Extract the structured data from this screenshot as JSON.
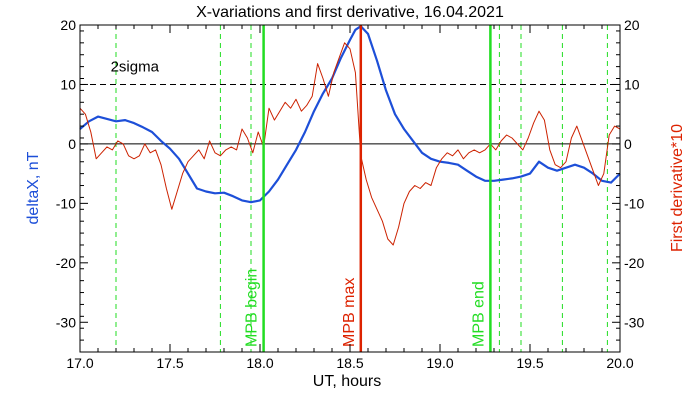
{
  "chart_data": {
    "type": "line",
    "title": "X-variations and first derivative, 16.04.2021",
    "xlabel": "UT, hours",
    "ylabel_left": "deltaX, nT",
    "ylabel_right": "First derivative*10",
    "xlim": [
      17.0,
      20.0
    ],
    "ylim": [
      -35,
      20
    ],
    "x_ticks": [
      "17.0",
      "17.5",
      "18.0",
      "18.5",
      "19.0",
      "19.5",
      "20.0"
    ],
    "x_tick_values": [
      17.0,
      17.5,
      18.0,
      18.5,
      19.0,
      19.5,
      20.0
    ],
    "y_ticks": [
      "20",
      "10",
      "0",
      "-10",
      "-20",
      "-30"
    ],
    "y_tick_values": [
      20,
      10,
      0,
      -10,
      -20,
      -30
    ],
    "colors": {
      "deltaX": "#1d4fd8",
      "derivative": "#cc2200",
      "mpb_lines": "#22dd22",
      "mpb_max": "#dd2200",
      "sigma": "#000000"
    },
    "sigma_line": {
      "label": "2sigma",
      "value": 10
    },
    "zero_line": 0,
    "vertical_markers": [
      {
        "label": "MPB begin",
        "x": 18.02,
        "color": "#22dd22"
      },
      {
        "label": "MPB max",
        "x": 18.56,
        "color": "#dd2200"
      },
      {
        "label": "MPB end",
        "x": 19.28,
        "color": "#22dd22"
      }
    ],
    "dashed_verticals": [
      17.2,
      17.78,
      17.95,
      19.33,
      19.45,
      19.68,
      19.93
    ],
    "series": [
      {
        "name": "deltaX",
        "color": "#1d4fd8",
        "x": [
          17.0,
          17.05,
          17.1,
          17.15,
          17.2,
          17.25,
          17.3,
          17.35,
          17.4,
          17.45,
          17.5,
          17.55,
          17.6,
          17.65,
          17.7,
          17.75,
          17.8,
          17.85,
          17.9,
          17.95,
          18.0,
          18.05,
          18.1,
          18.15,
          18.2,
          18.25,
          18.3,
          18.35,
          18.4,
          18.45,
          18.5,
          18.53,
          18.56,
          18.6,
          18.65,
          18.7,
          18.75,
          18.8,
          18.85,
          18.9,
          18.95,
          19.0,
          19.05,
          19.1,
          19.15,
          19.2,
          19.25,
          19.3,
          19.35,
          19.4,
          19.45,
          19.5,
          19.55,
          19.6,
          19.65,
          19.7,
          19.75,
          19.8,
          19.85,
          19.9,
          19.95,
          20.0
        ],
        "y": [
          2.5,
          3.8,
          4.6,
          4.2,
          3.8,
          4.0,
          3.5,
          2.8,
          2.0,
          0.5,
          -0.8,
          -2.5,
          -5.0,
          -7.5,
          -8.0,
          -8.3,
          -8.2,
          -8.8,
          -9.5,
          -9.8,
          -9.5,
          -8.0,
          -6.0,
          -3.5,
          -1.0,
          2.0,
          5.5,
          8.5,
          11.0,
          14.5,
          17.5,
          19.2,
          19.8,
          18.5,
          14.0,
          9.0,
          5.0,
          2.5,
          0.5,
          -1.5,
          -2.5,
          -3.0,
          -3.2,
          -3.5,
          -4.5,
          -5.5,
          -6.2,
          -6.2,
          -6.0,
          -5.8,
          -5.5,
          -5.0,
          -3.0,
          -4.0,
          -4.5,
          -4.0,
          -3.5,
          -4.0,
          -5.0,
          -6.2,
          -6.5,
          -5.0
        ]
      },
      {
        "name": "First derivative*10",
        "color": "#cc2200",
        "x": [
          17.0,
          17.03,
          17.06,
          17.09,
          17.12,
          17.15,
          17.18,
          17.21,
          17.24,
          17.27,
          17.3,
          17.33,
          17.36,
          17.39,
          17.42,
          17.45,
          17.48,
          17.51,
          17.54,
          17.57,
          17.6,
          17.63,
          17.66,
          17.69,
          17.72,
          17.75,
          17.78,
          17.81,
          17.84,
          17.87,
          17.9,
          17.93,
          17.96,
          17.99,
          18.02,
          18.05,
          18.08,
          18.11,
          18.14,
          18.17,
          18.2,
          18.23,
          18.26,
          18.29,
          18.32,
          18.35,
          18.38,
          18.41,
          18.44,
          18.47,
          18.5,
          18.53,
          18.56,
          18.59,
          18.62,
          18.65,
          18.68,
          18.71,
          18.74,
          18.77,
          18.8,
          18.83,
          18.86,
          18.89,
          18.92,
          18.95,
          18.98,
          19.01,
          19.04,
          19.07,
          19.1,
          19.13,
          19.16,
          19.19,
          19.22,
          19.25,
          19.28,
          19.31,
          19.34,
          19.37,
          19.4,
          19.43,
          19.46,
          19.49,
          19.52,
          19.55,
          19.58,
          19.61,
          19.64,
          19.67,
          19.7,
          19.73,
          19.76,
          19.79,
          19.82,
          19.85,
          19.88,
          19.91,
          19.94,
          19.97,
          20.0
        ],
        "y": [
          6.0,
          5.0,
          2.0,
          -2.5,
          -1.5,
          -0.5,
          -1.0,
          0.5,
          0.0,
          -2.0,
          -2.5,
          -2.0,
          0.0,
          -1.5,
          -1.0,
          -3.5,
          -7.5,
          -11.0,
          -8.0,
          -5.0,
          -3.0,
          -2.0,
          -1.0,
          -2.5,
          0.5,
          -1.5,
          -2.0,
          -1.0,
          -0.5,
          -1.0,
          2.5,
          1.0,
          -1.5,
          2.0,
          -0.5,
          6.0,
          4.0,
          5.5,
          7.0,
          6.0,
          7.5,
          5.5,
          6.5,
          8.0,
          13.5,
          11.0,
          8.0,
          12.0,
          14.5,
          17.0,
          16.0,
          12.0,
          -2.0,
          -6.0,
          -9.0,
          -11.0,
          -13.0,
          -16.0,
          -17.0,
          -14.0,
          -10.0,
          -8.0,
          -7.0,
          -7.5,
          -6.5,
          -7.0,
          -4.0,
          -2.5,
          -1.5,
          -2.0,
          -1.0,
          -2.5,
          -1.5,
          -1.0,
          -1.5,
          -1.0,
          0.0,
          -1.0,
          0.5,
          1.5,
          1.0,
          0.0,
          -1.0,
          1.0,
          3.5,
          5.5,
          4.0,
          -1.0,
          -3.5,
          -4.0,
          -3.0,
          1.0,
          3.0,
          0.5,
          -2.0,
          -4.5,
          -7.0,
          -5.0,
          1.5,
          3.0,
          2.5
        ]
      }
    ]
  }
}
